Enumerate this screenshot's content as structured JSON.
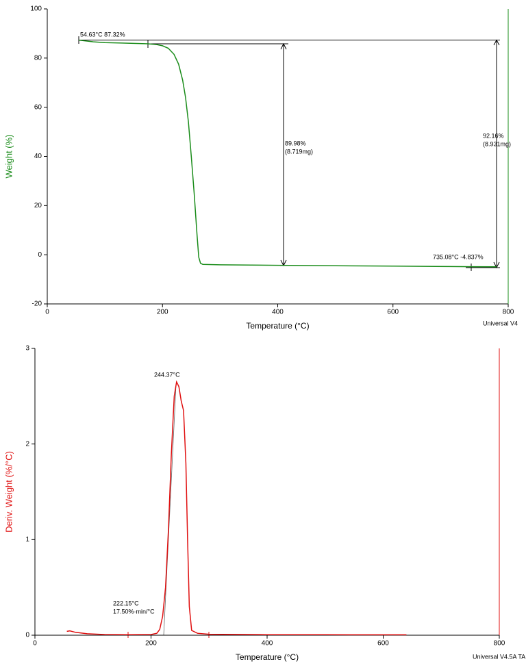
{
  "chart_data": [
    {
      "type": "line",
      "xlabel": "Temperature (°C)",
      "ylabel": "Weight (%)",
      "xlim": [
        0,
        800
      ],
      "xticks": [
        0,
        200,
        400,
        600,
        800
      ],
      "ylim": [
        -20,
        100
      ],
      "yticks": [
        -20,
        0,
        20,
        40,
        60,
        80,
        100
      ],
      "series": [
        {
          "color": "#1a8c1a",
          "x": [
            55,
            80,
            100,
            130,
            160,
            175,
            190,
            200,
            210,
            220,
            228,
            235,
            240,
            245,
            250,
            255,
            260,
            263,
            266,
            270,
            300,
            400,
            500,
            600,
            700,
            735,
            780
          ],
          "values": [
            87.3,
            86.6,
            86.3,
            86.1,
            85.9,
            85.8,
            85.5,
            85.0,
            84.0,
            81.5,
            77.5,
            71,
            64,
            54,
            40,
            25,
            8,
            -1,
            -3.5,
            -3.9,
            -4.1,
            -4.3,
            -4.5,
            -4.6,
            -4.8,
            -4.84,
            -4.9
          ]
        }
      ],
      "annotations": [
        "54.63°C 87.32%",
        "89.98%",
        "(8.719mg)",
        "92.16%",
        "(8.931mg)",
        "735.08°C -4.837%",
        "Universal V4"
      ]
    },
    {
      "type": "line",
      "xlabel": "Temperature (°C)",
      "ylabel": "Deriv. Weight (%/°C)",
      "xlim": [
        0,
        800
      ],
      "xticks": [
        0,
        200,
        400,
        600,
        800
      ],
      "ylim": [
        0,
        3
      ],
      "yticks": [
        0,
        1,
        2,
        3
      ],
      "series": [
        {
          "color": "#e01010",
          "x": [
            55,
            60,
            70,
            90,
            120,
            160,
            200,
            210,
            215,
            220,
            225,
            230,
            235,
            240,
            244,
            248,
            252,
            256,
            260,
            263,
            266,
            270,
            280,
            300,
            400,
            500,
            640
          ],
          "values": [
            0.04,
            0.045,
            0.03,
            0.015,
            0.007,
            0.005,
            0.007,
            0.02,
            0.06,
            0.2,
            0.5,
            1.1,
            1.9,
            2.5,
            2.65,
            2.6,
            2.45,
            2.35,
            1.8,
            1.0,
            0.3,
            0.05,
            0.02,
            0.01,
            0.006,
            0.005,
            0.004
          ]
        }
      ],
      "annotations": [
        "244.37°C",
        "222.15°C",
        "17.50%·min/°C",
        "Universal V4.5A TA"
      ]
    }
  ]
}
